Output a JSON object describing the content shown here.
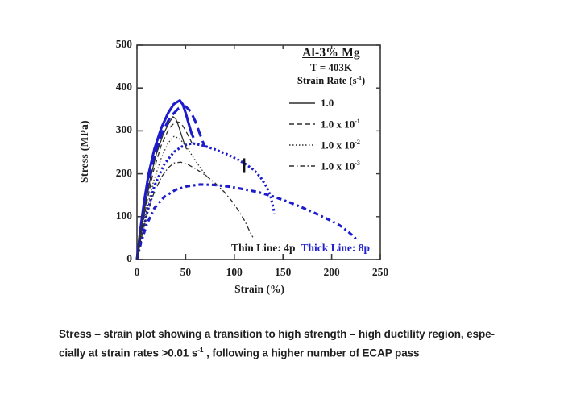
{
  "chart_data": {
    "type": "line",
    "xlabel": "Strain (%)",
    "ylabel": "Stress (MPa)",
    "xlim": [
      0,
      250
    ],
    "ylim": [
      0,
      500
    ],
    "x_ticks": [
      0,
      50,
      100,
      150,
      200,
      250
    ],
    "y_ticks": [
      0,
      100,
      200,
      300,
      400,
      500
    ],
    "grid": false,
    "legend_position": "top-right",
    "colors": {
      "thick": "#1c1ccd",
      "thin": "#2e2e2e",
      "axis": "#3a3a3a",
      "marker": "#141414"
    },
    "legend": {
      "title": "Al-3% Mg",
      "temperature": "T = 403K",
      "rate_heading_pre": "Strain Rate (s",
      "rate_heading_sup": "-1",
      "rate_heading_post": ")",
      "entries": [
        {
          "pattern": "solid",
          "label": "1.0",
          "sup": ""
        },
        {
          "pattern": "dashed",
          "label": "1.0 x 10",
          "sup": "-1"
        },
        {
          "pattern": "dotted",
          "label": "1.0 x 10",
          "sup": "-2"
        },
        {
          "pattern": "dashdot",
          "label": "1.0 x 10",
          "sup": "-3"
        }
      ]
    },
    "line_note": {
      "thin": "Thin Line: 4p",
      "thick": "Thick Line: 8p"
    },
    "marker": {
      "strain": 110,
      "stress_bottom": 202,
      "stress_top": 236
    },
    "series": [
      {
        "name": "8p-rate-1.0",
        "passes": "8p",
        "strain_rate": "1.0",
        "weight": "thick",
        "pattern": "solid",
        "points": [
          [
            0,
            0
          ],
          [
            3,
            60
          ],
          [
            7,
            130
          ],
          [
            12,
            200
          ],
          [
            18,
            258
          ],
          [
            25,
            307
          ],
          [
            32,
            342
          ],
          [
            38,
            363
          ],
          [
            44,
            371
          ],
          [
            47,
            362
          ],
          [
            50,
            342
          ],
          [
            53,
            318
          ],
          [
            56,
            295
          ],
          [
            58,
            284
          ]
        ]
      },
      {
        "name": "8p-rate-1e-1",
        "passes": "8p",
        "strain_rate": "1.0 x 10-1",
        "weight": "thick",
        "pattern": "dashed",
        "points": [
          [
            0,
            0
          ],
          [
            4,
            62
          ],
          [
            10,
            152
          ],
          [
            17,
            232
          ],
          [
            25,
            292
          ],
          [
            34,
            332
          ],
          [
            43,
            353
          ],
          [
            50,
            357
          ],
          [
            55,
            346
          ],
          [
            60,
            322
          ],
          [
            64,
            297
          ],
          [
            68,
            273
          ],
          [
            70,
            262
          ]
        ]
      },
      {
        "name": "8p-rate-1e-2",
        "passes": "8p",
        "strain_rate": "1.0 x 10-2",
        "weight": "thick",
        "pattern": "dotted",
        "points": [
          [
            0,
            0
          ],
          [
            4,
            45
          ],
          [
            10,
            105
          ],
          [
            18,
            172
          ],
          [
            28,
            222
          ],
          [
            38,
            251
          ],
          [
            48,
            266
          ],
          [
            57,
            271
          ],
          [
            68,
            266
          ],
          [
            80,
            257
          ],
          [
            92,
            246
          ],
          [
            103,
            234
          ],
          [
            112,
            222
          ],
          [
            120,
            209
          ],
          [
            127,
            192
          ],
          [
            133,
            170
          ],
          [
            137,
            150
          ],
          [
            140,
            122
          ],
          [
            141,
            108
          ]
        ]
      },
      {
        "name": "8p-rate-1e-3",
        "passes": "8p",
        "strain_rate": "1.0 x 10-3",
        "weight": "thick",
        "pattern": "dashdot",
        "points": [
          [
            0,
            0
          ],
          [
            4,
            38
          ],
          [
            10,
            82
          ],
          [
            18,
            120
          ],
          [
            28,
            146
          ],
          [
            40,
            163
          ],
          [
            52,
            171
          ],
          [
            65,
            175
          ],
          [
            80,
            174
          ],
          [
            95,
            170
          ],
          [
            110,
            164
          ],
          [
            125,
            157
          ],
          [
            140,
            147
          ],
          [
            155,
            135
          ],
          [
            170,
            121
          ],
          [
            185,
            106
          ],
          [
            198,
            92
          ],
          [
            208,
            80
          ],
          [
            216,
            67
          ],
          [
            222,
            55
          ],
          [
            225,
            48
          ]
        ]
      },
      {
        "name": "4p-rate-1.0",
        "passes": "4p",
        "strain_rate": "1.0",
        "weight": "thin",
        "pattern": "solid",
        "points": [
          [
            0,
            0
          ],
          [
            3,
            52
          ],
          [
            8,
            122
          ],
          [
            14,
            192
          ],
          [
            20,
            247
          ],
          [
            27,
            292
          ],
          [
            33,
            319
          ],
          [
            37,
            333
          ],
          [
            40,
            328
          ],
          [
            43,
            310
          ],
          [
            46,
            288
          ],
          [
            49,
            268
          ],
          [
            51,
            257
          ]
        ]
      },
      {
        "name": "4p-rate-1e-1",
        "passes": "4p",
        "strain_rate": "1.0 x 10-1",
        "weight": "thin",
        "pattern": "dashed",
        "points": [
          [
            0,
            0
          ],
          [
            4,
            55
          ],
          [
            10,
            132
          ],
          [
            17,
            207
          ],
          [
            25,
            267
          ],
          [
            33,
            306
          ],
          [
            40,
            322
          ],
          [
            45,
            319
          ],
          [
            50,
            301
          ],
          [
            54,
            283
          ],
          [
            57,
            269
          ]
        ]
      },
      {
        "name": "4p-rate-1e-2",
        "passes": "4p",
        "strain_rate": "1.0 x 10-2",
        "weight": "thin",
        "pattern": "dotted",
        "points": [
          [
            0,
            0
          ],
          [
            4,
            50
          ],
          [
            10,
            117
          ],
          [
            17,
            182
          ],
          [
            25,
            237
          ],
          [
            32,
            272
          ],
          [
            38,
            287
          ],
          [
            43,
            283
          ],
          [
            48,
            271
          ],
          [
            53,
            255
          ],
          [
            58,
            238
          ],
          [
            63,
            221
          ],
          [
            68,
            205
          ],
          [
            72,
            193
          ]
        ]
      },
      {
        "name": "4p-rate-1e-3",
        "passes": "4p",
        "strain_rate": "1.0 x 10-3",
        "weight": "thin",
        "pattern": "dashdot",
        "points": [
          [
            0,
            0
          ],
          [
            4,
            45
          ],
          [
            10,
            102
          ],
          [
            17,
            152
          ],
          [
            25,
            192
          ],
          [
            32,
            214
          ],
          [
            38,
            225
          ],
          [
            45,
            227
          ],
          [
            52,
            222
          ],
          [
            60,
            212
          ],
          [
            70,
            197
          ],
          [
            80,
            179
          ],
          [
            90,
            157
          ],
          [
            98,
            135
          ],
          [
            105,
            112
          ],
          [
            111,
            89
          ],
          [
            116,
            65
          ],
          [
            119,
            52
          ]
        ]
      }
    ]
  },
  "caption": {
    "line1": "Stress – strain plot showing a transition to high strength – high ductility region, espe-",
    "line2_pre": "cially at strain rates >0.01 s",
    "line2_sup": "-1",
    "line2_post": " , following a higher number of ECAP pass"
  }
}
